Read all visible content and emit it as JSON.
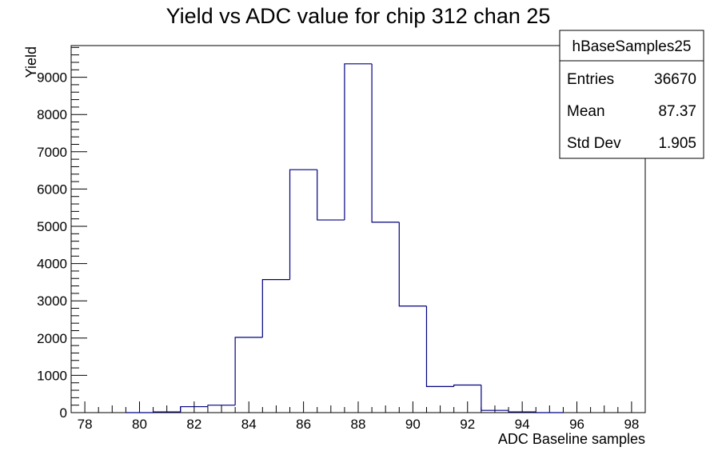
{
  "chart_data": {
    "type": "histogram",
    "title": "Yield vs ADC value for chip 312 chan 25",
    "xlabel": "ADC Baseline samples",
    "ylabel": "Yield",
    "xlim": [
      77.5,
      98.5
    ],
    "ylim": [
      0,
      9850
    ],
    "x_ticks": [
      "78",
      "80",
      "82",
      "84",
      "86",
      "88",
      "90",
      "92",
      "94",
      "96",
      "98"
    ],
    "y_ticks": [
      "0",
      "1000",
      "2000",
      "3000",
      "4000",
      "5000",
      "6000",
      "7000",
      "8000",
      "9000"
    ],
    "bin_width": 1,
    "series": [
      {
        "line_color": "#000080",
        "bins": [
          {
            "x": 80,
            "y": 0
          },
          {
            "x": 81,
            "y": 20
          },
          {
            "x": 82,
            "y": 160
          },
          {
            "x": 83,
            "y": 200
          },
          {
            "x": 84,
            "y": 2020
          },
          {
            "x": 85,
            "y": 3570
          },
          {
            "x": 86,
            "y": 6520
          },
          {
            "x": 87,
            "y": 5170
          },
          {
            "x": 88,
            "y": 9360
          },
          {
            "x": 89,
            "y": 5110
          },
          {
            "x": 90,
            "y": 2860
          },
          {
            "x": 91,
            "y": 700
          },
          {
            "x": 92,
            "y": 740
          },
          {
            "x": 93,
            "y": 60
          },
          {
            "x": 94,
            "y": 20
          },
          {
            "x": 95,
            "y": 0
          }
        ]
      }
    ],
    "stats_box": {
      "name": "hBaseSamples25",
      "rows": [
        {
          "label": "Entries",
          "value": "36670"
        },
        {
          "label": "Mean",
          "value": "87.37"
        },
        {
          "label": "Std Dev",
          "value": "1.905"
        }
      ]
    },
    "grid": false,
    "stats_box_placement": "top-right"
  }
}
